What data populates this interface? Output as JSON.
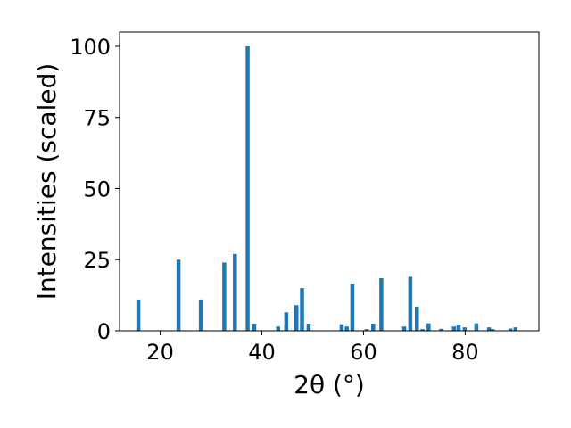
{
  "chart_data": {
    "type": "bar",
    "title": "",
    "xlabel": "2θ (°)",
    "ylabel": "Intensities (scaled)",
    "xlim": [
      12,
      94.5
    ],
    "ylim": [
      0,
      105
    ],
    "xticks": [
      20,
      40,
      60,
      80
    ],
    "yticks": [
      0,
      25,
      50,
      75,
      100
    ],
    "grid": false,
    "bar_color": "#1f77b4",
    "points": [
      {
        "x": 15.7,
        "y": 11
      },
      {
        "x": 23.6,
        "y": 25
      },
      {
        "x": 28.0,
        "y": 11
      },
      {
        "x": 32.6,
        "y": 24
      },
      {
        "x": 34.7,
        "y": 27
      },
      {
        "x": 37.2,
        "y": 100
      },
      {
        "x": 38.5,
        "y": 2.5
      },
      {
        "x": 43.2,
        "y": 1.5
      },
      {
        "x": 44.8,
        "y": 6.5
      },
      {
        "x": 46.8,
        "y": 9
      },
      {
        "x": 47.9,
        "y": 15
      },
      {
        "x": 49.2,
        "y": 2.5
      },
      {
        "x": 55.7,
        "y": 2.3
      },
      {
        "x": 56.7,
        "y": 1.5
      },
      {
        "x": 57.8,
        "y": 16.5
      },
      {
        "x": 60.6,
        "y": 0.6
      },
      {
        "x": 61.9,
        "y": 2.5
      },
      {
        "x": 63.5,
        "y": 18.5
      },
      {
        "x": 68.0,
        "y": 1.5
      },
      {
        "x": 69.2,
        "y": 19
      },
      {
        "x": 70.5,
        "y": 8.5
      },
      {
        "x": 71.6,
        "y": 0.6
      },
      {
        "x": 72.8,
        "y": 2.6
      },
      {
        "x": 75.3,
        "y": 0.7
      },
      {
        "x": 77.8,
        "y": 1.5
      },
      {
        "x": 78.7,
        "y": 2.2
      },
      {
        "x": 79.9,
        "y": 1.2
      },
      {
        "x": 82.2,
        "y": 2.6
      },
      {
        "x": 84.7,
        "y": 1.2
      },
      {
        "x": 85.4,
        "y": 0.6
      },
      {
        "x": 88.9,
        "y": 0.8
      },
      {
        "x": 89.9,
        "y": 1.2
      }
    ]
  }
}
